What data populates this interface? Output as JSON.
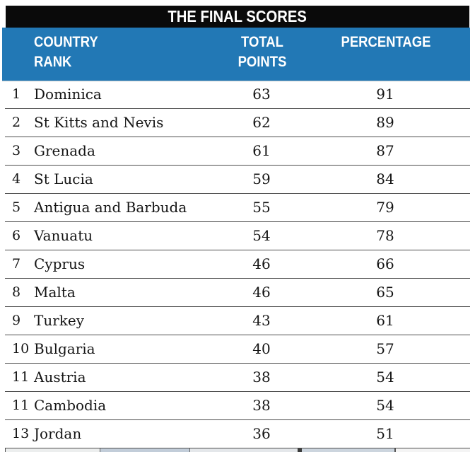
{
  "title": "THE FINAL SCORES",
  "headers": {
    "country_line1": "COUNTRY",
    "country_line2": "RANK",
    "points_line1": "TOTAL",
    "points_line2": "POINTS",
    "percentage": "PERCENTAGE"
  },
  "chart_data": {
    "type": "table",
    "title": "THE FINAL SCORES",
    "columns": [
      "RANK",
      "COUNTRY",
      "TOTAL POINTS",
      "PERCENTAGE"
    ],
    "rows": [
      [
        1,
        "Dominica",
        63,
        91
      ],
      [
        2,
        "St Kitts and Nevis",
        62,
        89
      ],
      [
        3,
        "Grenada",
        61,
        87
      ],
      [
        4,
        "St Lucia",
        59,
        84
      ],
      [
        5,
        "Antigua and Barbuda",
        55,
        79
      ],
      [
        6,
        "Vanuatu",
        54,
        78
      ],
      [
        7,
        "Cyprus",
        46,
        66
      ],
      [
        8,
        "Malta",
        46,
        65
      ],
      [
        9,
        "Turkey",
        43,
        61
      ],
      [
        10,
        "Bulgaria",
        40,
        57
      ],
      [
        11,
        "Austria",
        38,
        54
      ],
      [
        11,
        "Cambodia",
        38,
        54
      ],
      [
        13,
        "Jordan",
        36,
        51
      ]
    ]
  },
  "colors": {
    "header_blue": "#2278B5",
    "title_bar_black": "#0A0A0A",
    "row_divider": "#4D4D4D",
    "body_text": "#151515"
  }
}
